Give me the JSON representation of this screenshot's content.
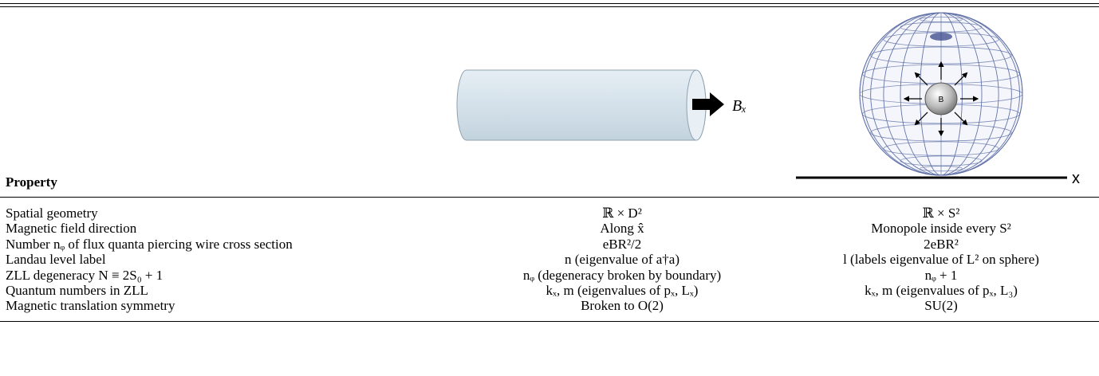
{
  "figures": {
    "cylinder_label": "Bₓ",
    "sphere_label": "B",
    "axis_label": "x"
  },
  "table": {
    "header": [
      "Property"
    ],
    "rows": [
      [
        "Spatial geometry",
        "ℝ × D²",
        "ℝ × S²"
      ],
      [
        "Magnetic field direction",
        "Along x̂",
        "Monopole inside every S²"
      ],
      [
        "Number nᵩ of flux quanta piercing wire cross section",
        "eBR²/2",
        "2eBR²"
      ],
      [
        "Landau level label",
        "n (eigenvalue of a†a)",
        "l (labels eigenvalue of L² on sphere)"
      ],
      [
        "ZLL degeneracy N ≡ 2S₀ + 1",
        "nᵩ (degeneracy broken by boundary)",
        "nᵩ + 1"
      ],
      [
        "Quantum numbers in ZLL",
        "kₓ, m (eigenvalues of pₓ, Lₓ)",
        "kₓ, m (eigenvalues of pₓ, L₃)"
      ],
      [
        "Magnetic translation symmetry",
        "Broken to O(2)",
        "SU(2)"
      ]
    ]
  }
}
